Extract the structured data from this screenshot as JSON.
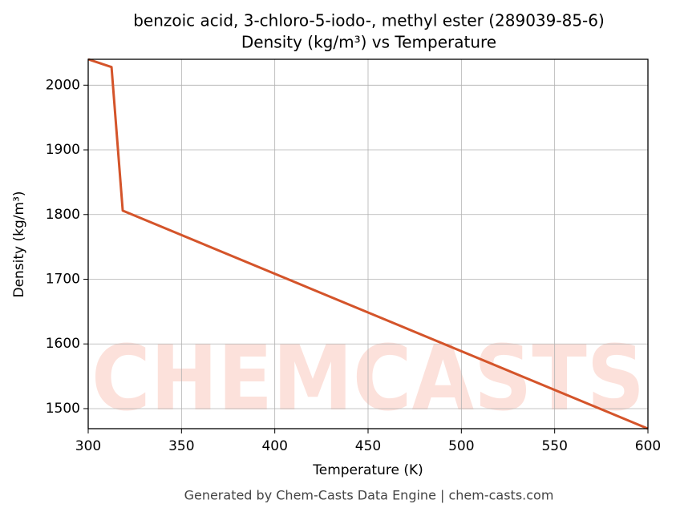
{
  "chart_data": {
    "type": "line",
    "title": "benzoic acid, 3-chloro-5-iodo-, methyl ester (289039-85-6)",
    "subtitle": "Density (kg/m³) vs Temperature",
    "x_label": "Temperature (K)",
    "y_label": "Density (kg/m³)",
    "footer": "Generated by Chem-Casts Data Engine | chem-casts.com",
    "watermark": "CHEMCASTS",
    "x": [
      300,
      312.5,
      318.5,
      600
    ],
    "series": [
      {
        "name": "Density",
        "color": "#d4542a",
        "values": [
          2040,
          2028,
          1806,
          1469
        ]
      }
    ],
    "xlim": [
      300,
      600
    ],
    "ylim": [
      1469,
      2040
    ],
    "xticks": [
      300,
      350,
      400,
      450,
      500,
      550,
      600
    ],
    "yticks": [
      1500,
      1600,
      1700,
      1800,
      1900,
      2000
    ],
    "grid": true
  }
}
